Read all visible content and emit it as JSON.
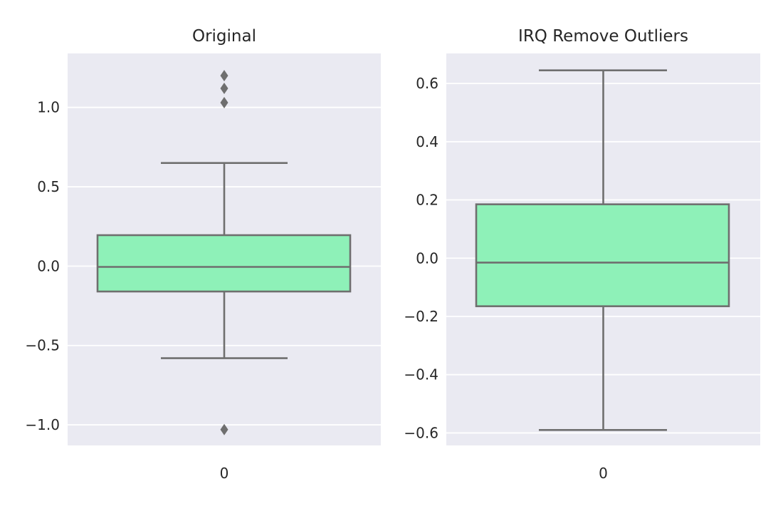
{
  "chart_data": [
    {
      "type": "box",
      "title": "Original",
      "xlabel": "",
      "ylabel": "",
      "categories": [
        "0"
      ],
      "ylim": [
        -1.13,
        1.34
      ],
      "yticks": [
        {
          "value": -1.0,
          "label": "−1.0"
        },
        {
          "value": -0.5,
          "label": "−0.5"
        },
        {
          "value": 0.0,
          "label": "0.0"
        },
        {
          "value": 0.5,
          "label": "0.5"
        },
        {
          "value": 1.0,
          "label": "1.0"
        }
      ],
      "box": {
        "whisker_low": -0.58,
        "q1": -0.16,
        "median": -0.005,
        "q3": 0.195,
        "whisker_high": 0.65
      },
      "outliers": [
        1.2,
        1.12,
        1.03,
        -1.03
      ],
      "grid": true,
      "box_color": "#8ef1b8",
      "line_color": "#6f6f6f"
    },
    {
      "type": "box",
      "title": "IRQ Remove Outliers",
      "xlabel": "",
      "ylabel": "",
      "categories": [
        "0"
      ],
      "ylim": [
        -0.643,
        0.703
      ],
      "yticks": [
        {
          "value": -0.6,
          "label": "−0.6"
        },
        {
          "value": -0.4,
          "label": "−0.4"
        },
        {
          "value": -0.2,
          "label": "−0.2"
        },
        {
          "value": 0.0,
          "label": "0.0"
        },
        {
          "value": 0.2,
          "label": "0.2"
        },
        {
          "value": 0.4,
          "label": "0.4"
        },
        {
          "value": 0.6,
          "label": "0.6"
        }
      ],
      "box": {
        "whisker_low": -0.59,
        "q1": -0.165,
        "median": -0.015,
        "q3": 0.185,
        "whisker_high": 0.645
      },
      "outliers": [],
      "grid": true,
      "box_color": "#8ef1b8",
      "line_color": "#6f6f6f"
    }
  ],
  "style": {
    "panel_background": "#eaeaf2",
    "grid_color": "#ffffff",
    "text_color": "#262626"
  }
}
